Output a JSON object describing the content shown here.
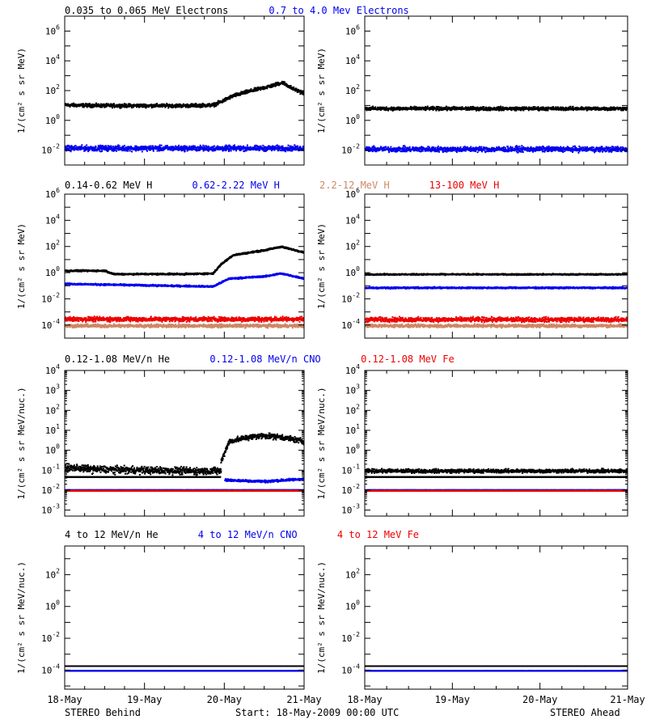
{
  "footer": {
    "left_label": "STEREO Behind",
    "center_label": "Start: 18-May-2009 00:00 UTC",
    "right_label": "STEREO Ahead"
  },
  "x_axis": {
    "tick_labels": [
      "18-May",
      "19-May",
      "20-May",
      "21-May"
    ],
    "range_days": [
      0,
      3
    ]
  },
  "colors": {
    "black": "#000000",
    "blue": "#0000ee",
    "tan": "#cc8866",
    "red": "#ee0000"
  },
  "chart_data": [
    {
      "type": "scatter",
      "spacecraft": "STEREO Behind",
      "row": 0,
      "legend": [
        {
          "text": "0.035 to 0.065 MeV Electrons",
          "color": "#000000"
        },
        {
          "text": "0.7 to 4.0 Mev Electrons",
          "color": "#0000ee"
        }
      ],
      "ylabel": "1/(cm² s sr MeV)",
      "yscale": "log",
      "ylim_exp": [
        -3,
        7
      ],
      "y_tick_exps": [
        -2,
        0,
        2,
        4,
        6
      ],
      "series": [
        {
          "color": "#000000",
          "points": [
            [
              0,
              12
            ],
            [
              0.5,
              11
            ],
            [
              1,
              11
            ],
            [
              1.5,
              11
            ],
            [
              1.85,
              12
            ],
            [
              1.95,
              20
            ],
            [
              2.1,
              50
            ],
            [
              2.3,
              100
            ],
            [
              2.6,
              250
            ],
            [
              2.72,
              400
            ],
            [
              2.85,
              150
            ],
            [
              3,
              70
            ]
          ],
          "scatter": 0.1
        },
        {
          "color": "#0000ee",
          "points": [
            [
              0,
              0.015
            ],
            [
              3,
              0.015
            ]
          ],
          "scatter": 0.15
        }
      ]
    },
    {
      "type": "scatter",
      "spacecraft": "STEREO Ahead",
      "row": 0,
      "ylabel": "1/(cm² s sr MeV)",
      "yscale": "log",
      "ylim_exp": [
        -3,
        7
      ],
      "y_tick_exps": [
        -2,
        0,
        2,
        4,
        6
      ],
      "series": [
        {
          "color": "#000000",
          "points": [
            [
              0,
              7
            ],
            [
              3,
              7
            ]
          ],
          "scatter": 0.1
        },
        {
          "color": "#0000ee",
          "points": [
            [
              0,
              0.013
            ],
            [
              3,
              0.013
            ]
          ],
          "scatter": 0.15
        }
      ]
    },
    {
      "type": "scatter",
      "spacecraft": "STEREO Behind",
      "row": 1,
      "legend": [
        {
          "text": "0.14-0.62 MeV H",
          "color": "#000000"
        },
        {
          "text": "0.62-2.22 MeV H",
          "color": "#0000ee"
        },
        {
          "text": "2.2-12 MeV H",
          "color": "#cc8866"
        },
        {
          "text": "13-100 MeV H",
          "color": "#ee0000"
        }
      ],
      "ylabel": "1/(cm² s sr MeV)",
      "yscale": "log",
      "ylim_exp": [
        -5,
        6
      ],
      "y_tick_exps": [
        -4,
        -2,
        0,
        2,
        4,
        6
      ],
      "series": [
        {
          "color": "#000000",
          "points": [
            [
              0,
              1.6
            ],
            [
              0.5,
              1.6
            ],
            [
              0.6,
              0.9
            ],
            [
              1.5,
              0.9
            ],
            [
              1.85,
              1.0
            ],
            [
              1.95,
              5
            ],
            [
              2.1,
              25
            ],
            [
              2.5,
              60
            ],
            [
              2.7,
              110
            ],
            [
              3,
              40
            ]
          ],
          "scatter": 0.05
        },
        {
          "color": "#0000ee",
          "points": [
            [
              0,
              0.16
            ],
            [
              1.85,
              0.1
            ],
            [
              2.05,
              0.4
            ],
            [
              2.5,
              0.6
            ],
            [
              2.7,
              1.0
            ],
            [
              3,
              0.4
            ]
          ],
          "scatter": 0.05
        },
        {
          "color": "#cc8866",
          "points": [
            [
              0,
              0.0001
            ],
            [
              3,
              0.0001
            ]
          ],
          "scatter": 0.1
        },
        {
          "color": "#ee0000",
          "points": [
            [
              0,
              0.00032
            ],
            [
              3,
              0.00032
            ]
          ],
          "scatter": 0.15
        }
      ]
    },
    {
      "type": "scatter",
      "spacecraft": "STEREO Ahead",
      "row": 1,
      "ylabel": "1/(cm² s sr MeV)",
      "yscale": "log",
      "ylim_exp": [
        -5,
        6
      ],
      "y_tick_exps": [
        -4,
        -2,
        0,
        2,
        4,
        6
      ],
      "series": [
        {
          "color": "#000000",
          "points": [
            [
              0,
              0.85
            ],
            [
              3,
              0.85
            ]
          ],
          "scatter": 0.04
        },
        {
          "color": "#0000ee",
          "points": [
            [
              0,
              0.08
            ],
            [
              3,
              0.08
            ]
          ],
          "scatter": 0.05
        },
        {
          "color": "#cc8866",
          "points": [
            [
              0,
              0.0001
            ],
            [
              3,
              0.0001
            ]
          ],
          "scatter": 0.1
        },
        {
          "color": "#ee0000",
          "points": [
            [
              0,
              0.0003
            ],
            [
              3,
              0.0003
            ]
          ],
          "scatter": 0.15
        }
      ]
    },
    {
      "type": "scatter",
      "spacecraft": "STEREO Behind",
      "row": 2,
      "legend": [
        {
          "text": "0.12-1.08 MeV/n He",
          "color": "#000000"
        },
        {
          "text": "0.12-1.08 MeV/n CNO",
          "color": "#0000ee"
        },
        {
          "text": "0.12-1.08 MeV Fe",
          "color": "#ee0000"
        }
      ],
      "ylabel": "1/(cm² s sr MeV/nuc.)",
      "yscale": "log",
      "ylim_exp": [
        -3.3,
        4
      ],
      "y_tick_exps": [
        -3,
        -2,
        -1,
        0,
        1,
        2,
        3,
        4
      ],
      "series": [
        {
          "color": "#000000",
          "points": [
            [
              0,
              0.05
            ],
            [
              1.95,
              0.05
            ]
          ],
          "scatter": 0.0
        },
        {
          "color": "#000000",
          "points": [
            [
              0,
              0.15
            ],
            [
              0.4,
              0.12
            ],
            [
              1.6,
              0.1
            ],
            [
              1.95,
              0.1
            ]
          ],
          "scatter": 0.15
        },
        {
          "color": "#000000",
          "points": [
            [
              1.95,
              0.3
            ],
            [
              2.05,
              3
            ],
            [
              2.3,
              5
            ],
            [
              2.5,
              6
            ],
            [
              2.7,
              5
            ],
            [
              3,
              3
            ]
          ],
          "scatter": 0.12
        },
        {
          "color": "#0000ee",
          "points": [
            [
              2.0,
              0.035
            ],
            [
              2.5,
              0.03
            ],
            [
              3,
              0.04
            ]
          ],
          "scatter": 0.05
        },
        {
          "color": "#0000ee",
          "points": [
            [
              0,
              0.011
            ],
            [
              3,
              0.011
            ]
          ],
          "scatter": 0.0
        },
        {
          "color": "#ee0000",
          "points": [
            [
              0,
              0.01
            ],
            [
              3,
              0.01
            ]
          ],
          "scatter": 0.0
        }
      ]
    },
    {
      "type": "scatter",
      "spacecraft": "STEREO Ahead",
      "row": 2,
      "ylabel": "1/(cm² s sr MeV/nuc.)",
      "yscale": "log",
      "ylim_exp": [
        -3.3,
        4
      ],
      "y_tick_exps": [
        -3,
        -2,
        -1,
        0,
        1,
        2,
        3,
        4
      ],
      "series": [
        {
          "color": "#000000",
          "points": [
            [
              0,
              0.05
            ],
            [
              3,
              0.05
            ]
          ],
          "scatter": 0.0
        },
        {
          "color": "#000000",
          "points": [
            [
              0,
              0.1
            ],
            [
              3,
              0.1
            ]
          ],
          "scatter": 0.08
        },
        {
          "color": "#0000ee",
          "points": [
            [
              0,
              0.011
            ],
            [
              3,
              0.011
            ]
          ],
          "scatter": 0.0
        },
        {
          "color": "#ee0000",
          "points": [
            [
              0,
              0.01
            ],
            [
              3,
              0.01
            ]
          ],
          "scatter": 0.0
        }
      ]
    },
    {
      "type": "scatter",
      "spacecraft": "STEREO Behind",
      "row": 3,
      "legend": [
        {
          "text": "4 to 12 MeV/n He",
          "color": "#000000"
        },
        {
          "text": "4 to 12 MeV/n CNO",
          "color": "#0000ee"
        },
        {
          "text": "4 to 12 MeV Fe",
          "color": "#ee0000"
        }
      ],
      "ylabel": "1/(cm² s sr MeV/nuc.)",
      "yscale": "log",
      "ylim_exp": [
        -5.2,
        3.8
      ],
      "y_tick_exps": [
        -4,
        -2,
        0,
        2
      ],
      "series": [
        {
          "color": "#0000ee",
          "points": [
            [
              0,
              0.0001
            ],
            [
              3,
              0.0001
            ]
          ],
          "scatter": 0.0
        },
        {
          "color": "#000000",
          "points": [
            [
              0,
              0.0002
            ],
            [
              3,
              0.0002
            ]
          ],
          "scatter": 0.0
        }
      ]
    },
    {
      "type": "scatter",
      "spacecraft": "STEREO Ahead",
      "row": 3,
      "ylabel": "1/(cm² s sr MeV/nuc.)",
      "yscale": "log",
      "ylim_exp": [
        -5.2,
        3.8
      ],
      "y_tick_exps": [
        -4,
        -2,
        0,
        2
      ],
      "series": [
        {
          "color": "#0000ee",
          "points": [
            [
              0,
              0.0001
            ],
            [
              3,
              0.0001
            ]
          ],
          "scatter": 0.0
        },
        {
          "color": "#000000",
          "points": [
            [
              0,
              0.0002
            ],
            [
              3,
              0.0002
            ]
          ],
          "scatter": 0.0
        }
      ]
    }
  ]
}
